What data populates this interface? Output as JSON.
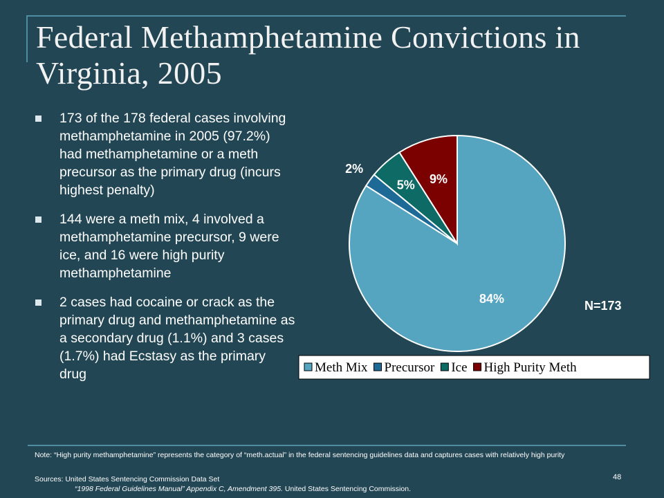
{
  "title": "Federal Methamphetamine Convictions in Virginia, 2005",
  "bullets": [
    "173 of the 178 federal cases involving methamphetamine in 2005 (97.2%) had methamphetamine or a meth precursor as the primary drug (incurs highest penalty)",
    "144 were a meth mix, 4 involved a methamphetamine precursor, 9 were ice, and 16 were high purity methamphetamine",
    "2 cases had cocaine or crack as the primary drug and methamphetamine as a secondary drug (1.1%) and 3 cases (1.7%) had Ecstasy as the primary drug"
  ],
  "chart_data": {
    "type": "pie",
    "title": "",
    "slices": [
      {
        "label": "Meth Mix",
        "value": 84,
        "display": "84%",
        "color": "#56a5c0"
      },
      {
        "label": "Precursor",
        "value": 2,
        "display": "2%",
        "color": "#1e6a96"
      },
      {
        "label": "Ice",
        "value": 5,
        "display": "5%",
        "color": "#0d6a64"
      },
      {
        "label": "High Purity Meth",
        "value": 9,
        "display": "9%",
        "color": "#7b0000"
      }
    ],
    "annotation": "N=173",
    "legend_position": "bottom"
  },
  "footer": {
    "note": "Note: “High purity methamphetamine” represents the category of “meth.actual” in the federal sentencing guidelines data and captures cases with relatively high purity",
    "sources": "Sources: United States Sentencing Commission Data Set",
    "sources_line2_italic": "“1998 Federal Guidelines Manual” Appendix C, Amendment 395.",
    "sources_line2_rest": " United States Sentencing Commission.",
    "page_number": "48"
  }
}
